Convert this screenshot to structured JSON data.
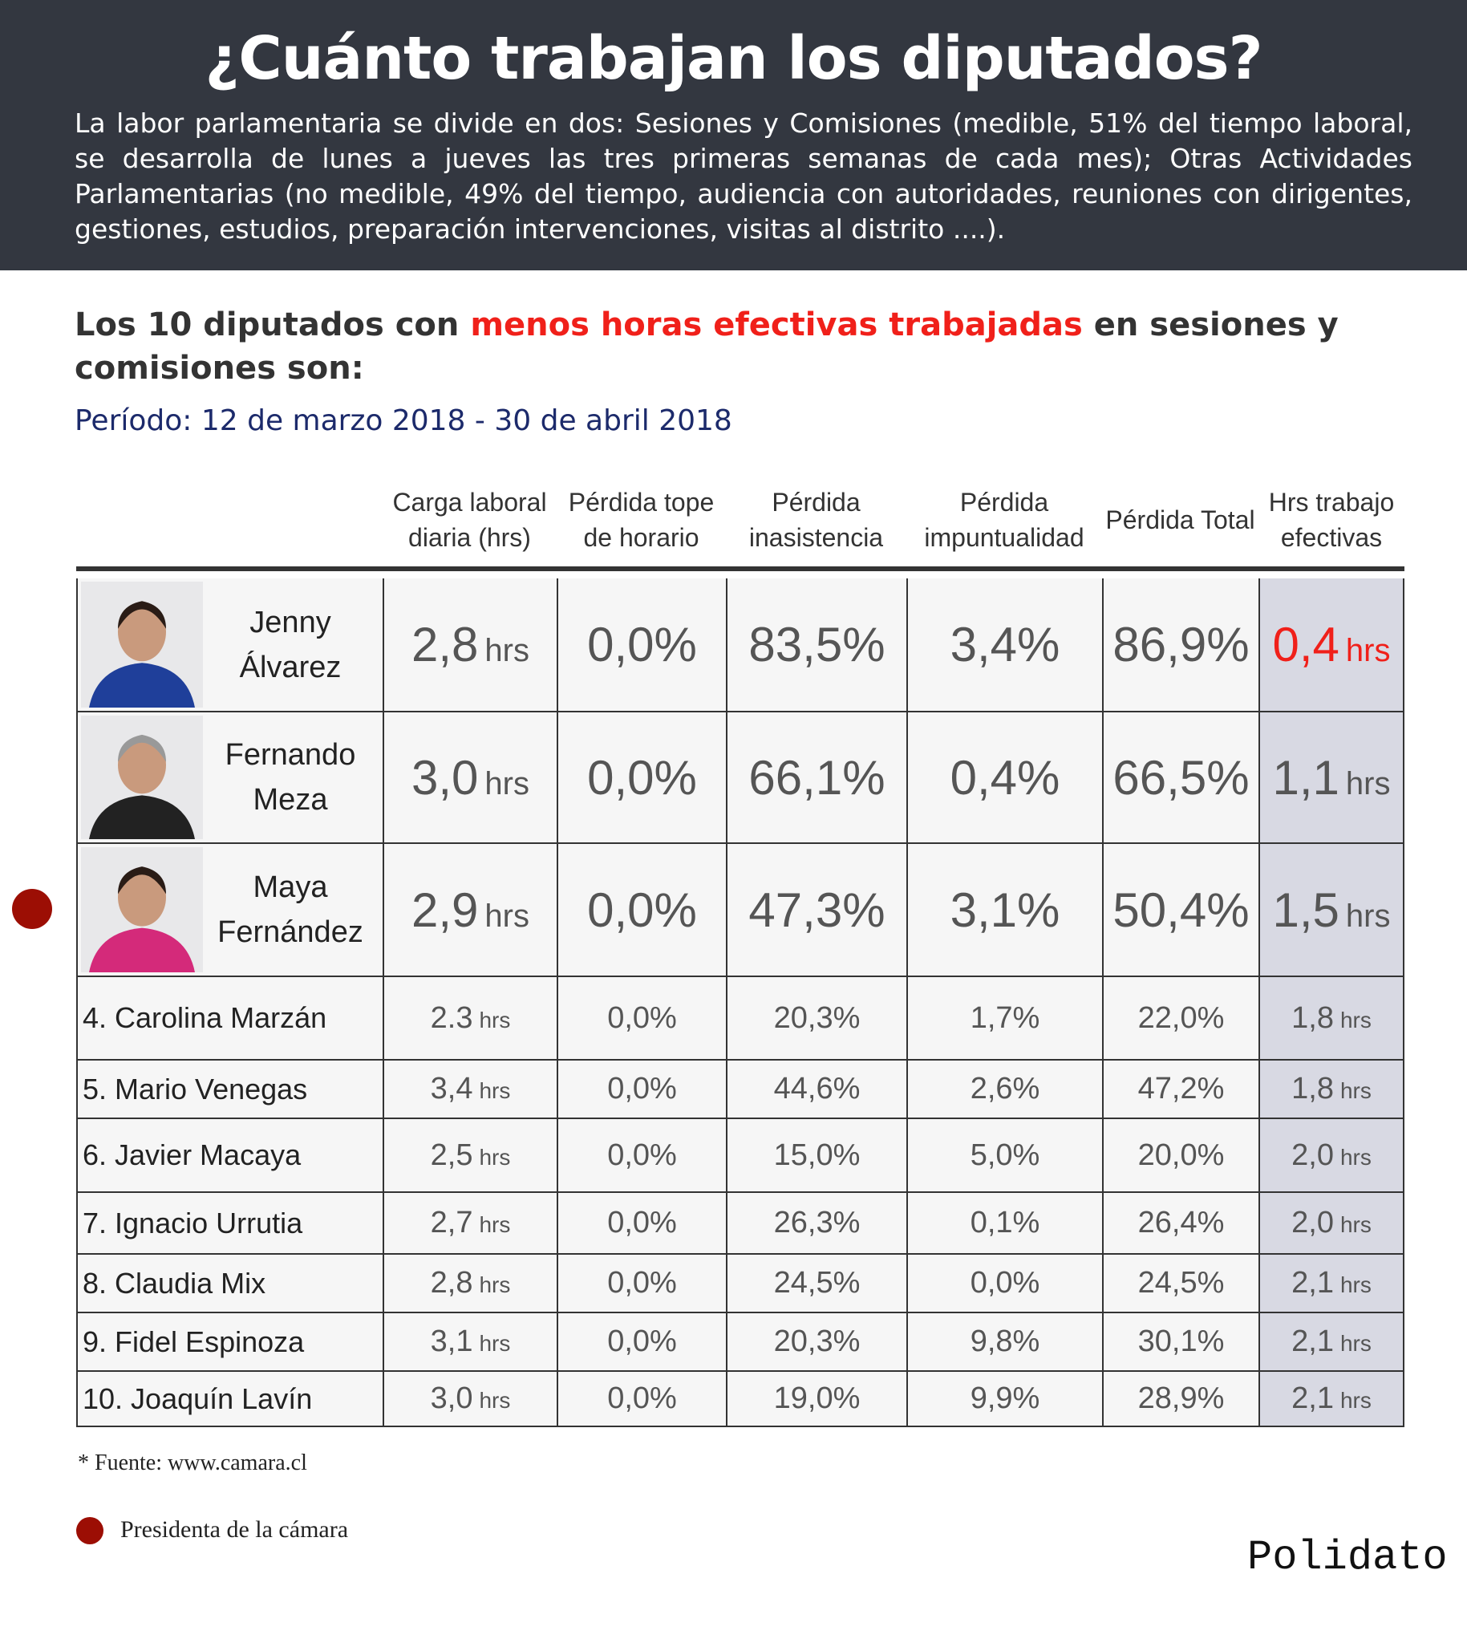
{
  "header": {
    "title": "¿Cuánto trabajan los diputados?",
    "intro": "La labor parlamentaria se divide en dos: Sesiones y Comisiones (medible, 51% del tiempo laboral, se desarrolla de lunes a jueves las tres primeras semanas de cada mes); Otras Actividades Parlamentarias (no medible, 49% del tiempo, audiencia con autoridades, reuniones con dirigentes, gestiones, estudios, preparación intervenciones, visitas al distrito ....)."
  },
  "subtitle": {
    "part1": "Los 10 diputados con ",
    "highlight": "menos horas efectivas trabajadas",
    "part2": " en sesiones y comisiones son:"
  },
  "period": "Período: 12 de marzo 2018 - 30 de abril 2018",
  "columns": [
    "Carga laboral diaria (hrs)",
    "Pérdida tope de horario",
    "Pérdida inasistencia",
    "Pérdida impuntualidad",
    "Pérdida Total",
    "Hrs trabajo efectivas"
  ],
  "rows": [
    {
      "name": "Jenny Álvarez",
      "carga": "2,8",
      "tope": "0,0%",
      "inasistencia": "83,5%",
      "impuntualidad": "3,4%",
      "total": "86,9%",
      "efectivas": "0,4",
      "photo": true,
      "highlight": true
    },
    {
      "name": "Fernando Meza",
      "carga": "3,0",
      "tope": "0,0%",
      "inasistencia": "66,1%",
      "impuntualidad": "0,4%",
      "total": "66,5%",
      "efectivas": "1,1",
      "photo": true
    },
    {
      "name": "Maya Fernández",
      "carga": "2,9",
      "tope": "0,0%",
      "inasistencia": "47,3%",
      "impuntualidad": "3,1%",
      "total": "50,4%",
      "efectivas": "1,5",
      "photo": true,
      "president": true
    },
    {
      "name": "4. Carolina Marzán",
      "carga": "2.3",
      "tope": "0,0%",
      "inasistencia": "20,3%",
      "impuntualidad": "1,7%",
      "total": "22,0%",
      "efectivas": "1,8"
    },
    {
      "name": "5. Mario Venegas",
      "carga": "3,4",
      "tope": "0,0%",
      "inasistencia": "44,6%",
      "impuntualidad": "2,6%",
      "total": "47,2%",
      "efectivas": "1,8"
    },
    {
      "name": "6. Javier Macaya",
      "carga": "2,5",
      "tope": "0,0%",
      "inasistencia": "15,0%",
      "impuntualidad": "5,0%",
      "total": "20,0%",
      "efectivas": "2,0"
    },
    {
      "name": "7. Ignacio Urrutia",
      "carga": "2,7",
      "tope": "0,0%",
      "inasistencia": "26,3%",
      "impuntualidad": "0,1%",
      "total": "26,4%",
      "efectivas": "2,0"
    },
    {
      "name": "8. Claudia Mix",
      "carga": "2,8",
      "tope": "0,0%",
      "inasistencia": "24,5%",
      "impuntualidad": "0,0%",
      "total": "24,5%",
      "efectivas": "2,1"
    },
    {
      "name": "9. Fidel Espinoza",
      "carga": "3,1",
      "tope": "0,0%",
      "inasistencia": "20,3%",
      "impuntualidad": "9,8%",
      "total": "30,1%",
      "efectivas": "2,1"
    },
    {
      "name": "10. Joaquín Lavín",
      "carga": "3,0",
      "tope": "0,0%",
      "inasistencia": "19,0%",
      "impuntualidad": "9,9%",
      "total": "28,9%",
      "efectivas": "2,1"
    }
  ],
  "unit": "hrs",
  "footer": {
    "source": "* Fuente: www.camara.cl",
    "legend": "Presidenta de la cámara",
    "logo": "Polidato"
  },
  "colors": {
    "header_bg": "#333740",
    "accent_red": "#f0201a",
    "president_dot": "#9c0e04",
    "period_blue": "#1c2a6b",
    "effective_col_bg": "#d8d9e3"
  }
}
